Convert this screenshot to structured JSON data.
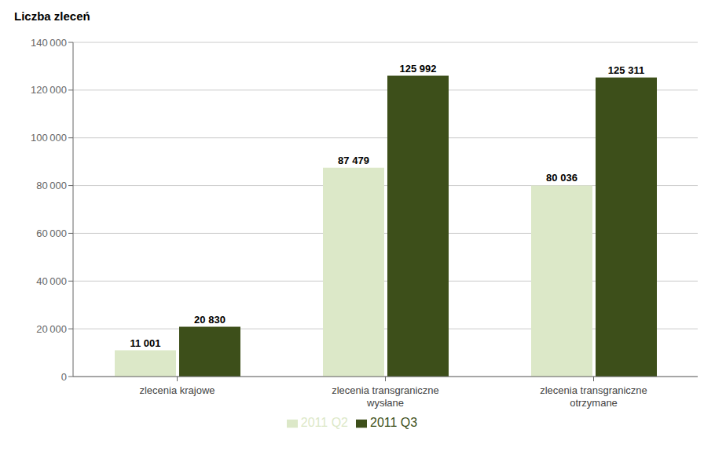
{
  "chart_data": {
    "type": "bar",
    "ylabel": "Liczba zleceń",
    "categories": [
      "zlecenia krajowe",
      "zlecenia transgraniczne\nwysłane",
      "zlecenia transgraniczne\notrzymane"
    ],
    "series": [
      {
        "name": "2011 Q2",
        "color": "#dce8c8",
        "values": [
          11001,
          87479,
          80036
        ],
        "value_labels": [
          "11 001",
          "87 479",
          "80 036"
        ]
      },
      {
        "name": "2011 Q3",
        "color": "#3d4f1a",
        "values": [
          20830,
          125992,
          125311
        ],
        "value_labels": [
          "20 830",
          "125 992",
          "125 311"
        ]
      }
    ],
    "ylim": [
      0,
      140000
    ],
    "yticks": [
      0,
      {
        "value": 20000,
        "label": "20 000"
      },
      {
        "value": 40000,
        "label": "40 000"
      },
      {
        "value": 60000,
        "label": "60 000"
      },
      {
        "value": 80000,
        "label": "80 000"
      },
      {
        "value": 100000,
        "label": "100 000"
      },
      {
        "value": 120000,
        "label": "120 000"
      },
      {
        "value": 140000,
        "label": "140 000"
      }
    ],
    "grid": true,
    "legend": "bottom",
    "data_labels": true
  }
}
